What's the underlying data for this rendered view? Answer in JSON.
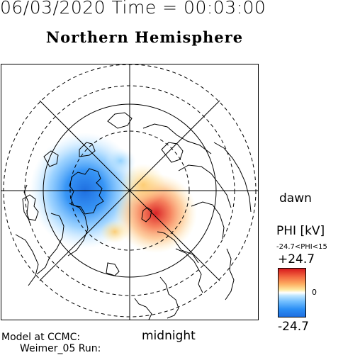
{
  "header": {
    "time_title": "06/03/2020 Time = 00:03:00",
    "hemisphere_title": "Northern Hemisphere"
  },
  "map": {
    "projection": "north-polar-stereographic",
    "dawn_label": "dawn",
    "midnight_label": "midnight",
    "colors": {
      "positive": "#d7191c",
      "negative": "#1f6fe0",
      "zero": "#ffffff"
    }
  },
  "colorbar": {
    "title": "PHI [kV]",
    "range_text": "-24.7<PHI<15",
    "max_label": "+24.7",
    "zero_label": "0",
    "min_label": "-24.7"
  },
  "credits": {
    "line1": "Model at CCMC:",
    "line2": "Weimer_05 Run:"
  }
}
